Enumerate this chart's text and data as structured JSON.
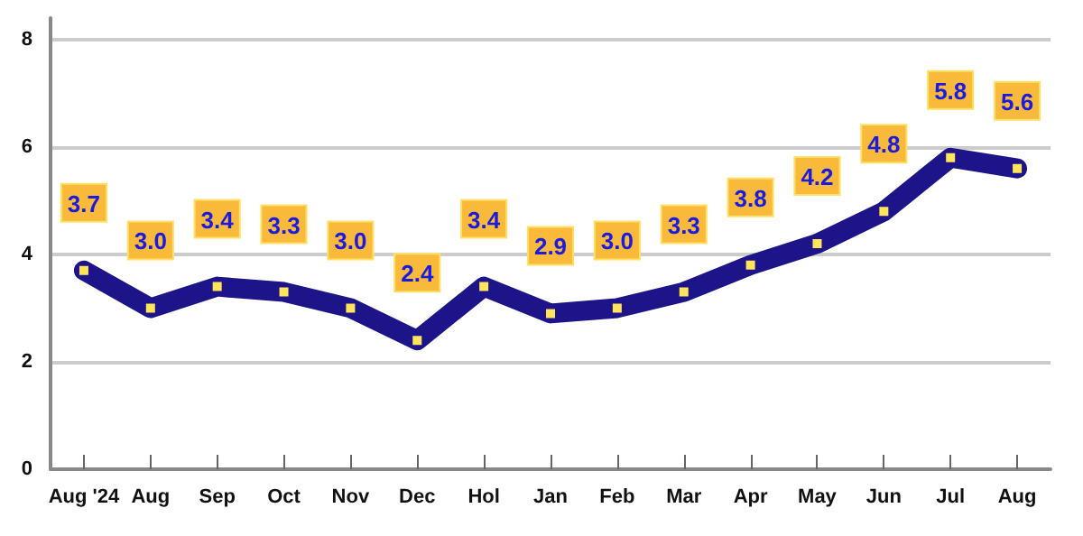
{
  "chart_data": {
    "type": "line",
    "categories": [
      "Aug '24",
      "Aug",
      "Sep",
      "Oct",
      "Nov",
      "Dec",
      "Hol",
      "Jan",
      "Feb",
      "Mar",
      "Apr",
      "May",
      "Jun",
      "Jul",
      "Aug"
    ],
    "series": [
      {
        "color": "#1c1488",
        "values": [
          3.7,
          3.0,
          3.4,
          3.3,
          3.0,
          2.4,
          3.4,
          2.9,
          3.0,
          3.3,
          3.8,
          4.2,
          4.8,
          5.8,
          5.6
        ],
        "value_labels": [
          "3.7",
          "3.0",
          "3.4",
          "3.3",
          "3.0",
          "2.4",
          "3.4",
          "2.9",
          "3.0",
          "3.3",
          "3.8",
          "4.2",
          "4.8",
          "5.8",
          "5.6"
        ]
      }
    ],
    "ylim": [
      0,
      8.4
    ],
    "yticks": [
      0,
      2,
      4,
      6,
      8
    ],
    "grid": "y",
    "marker": "square",
    "line_style": "solid"
  }
}
